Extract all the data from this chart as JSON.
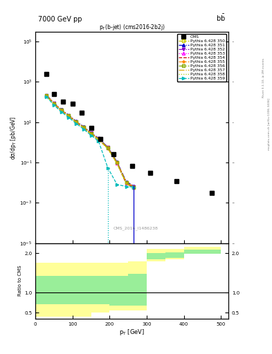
{
  "title_top": "7000 GeV pp",
  "title_right": "b$\\bar{\\mathrm{b}}$",
  "plot_title": "p$_\\mathrm{T}$(b-jet) (cms2016-2b2j)",
  "xlabel": "p$_\\mathrm{T}$ [GeV]",
  "ylabel_main": "dσ/dp$_\\mathrm{T}$ [pb/GeV]",
  "ylabel_ratio": "Ratio to CMS",
  "watermark": "CMS_2016_I1486238",
  "right_label": "Rivet 3.1.10, ≥ 2M events",
  "right_label2": "mcplots.cern.ch [arXiv:1306.3436]",
  "cms_x": [
    30,
    50,
    75,
    100,
    125,
    150,
    175,
    210,
    260,
    310,
    380,
    475
  ],
  "cms_y": [
    2500,
    250,
    100,
    80,
    30,
    5.0,
    1.5,
    0.25,
    0.07,
    0.03,
    0.012,
    0.003
  ],
  "pythia_x": [
    30,
    50,
    70,
    90,
    110,
    130,
    150,
    170,
    195,
    220,
    245,
    265
  ],
  "pythia_350_y": [
    200,
    80,
    38,
    20,
    10,
    5.5,
    2.8,
    1.5,
    0.55,
    0.1,
    0.01,
    0.006
  ],
  "pythia_351_y": [
    220,
    90,
    42,
    22,
    11,
    6.0,
    3.0,
    1.6,
    0.58,
    0.105,
    0.011,
    0.007
  ],
  "pythia_352_y": [
    215,
    88,
    41,
    21.5,
    10.8,
    5.8,
    2.9,
    1.55,
    0.57,
    0.103,
    0.0105,
    0.0065
  ],
  "pythia_353_y": [
    210,
    85,
    39,
    20.5,
    10.3,
    5.5,
    2.75,
    1.45,
    0.53,
    0.095,
    0.009,
    0.006
  ],
  "pythia_354_y": [
    205,
    82,
    38,
    20,
    10,
    5.3,
    2.65,
    1.4,
    0.51,
    0.092,
    0.0088,
    0.0058
  ],
  "pythia_355_y": [
    212,
    87,
    40,
    21,
    10.5,
    5.7,
    2.85,
    1.5,
    0.55,
    0.1,
    0.0102,
    0.0065
  ],
  "pythia_356_y": [
    208,
    85,
    39,
    20.8,
    10.4,
    5.6,
    2.8,
    1.48,
    0.54,
    0.098,
    0.0098,
    0.006
  ],
  "pythia_357_y": [
    200,
    80,
    37,
    19.5,
    9.8,
    5.2,
    2.6,
    1.38,
    0.5,
    0.09,
    0.0088,
    0.0056
  ],
  "pythia_358_y": [
    195,
    78,
    36,
    19,
    9.5,
    5.0,
    2.5,
    1.32,
    0.48,
    0.086,
    0.0085,
    0.0055
  ],
  "pythia_359_y": [
    180,
    70,
    32,
    17,
    8.5,
    4.5,
    2.2,
    1.15,
    0.055,
    0.008,
    0.0065,
    0.006
  ],
  "series": [
    {
      "label": "Pythia 6.428 350",
      "color": "#c8c800",
      "marker": "s",
      "mfc": "none",
      "linestyle": "--"
    },
    {
      "label": "Pythia 6.428 351",
      "color": "#0000cc",
      "marker": "^",
      "mfc": "#0000cc",
      "linestyle": "-."
    },
    {
      "label": "Pythia 6.428 352",
      "color": "#8800cc",
      "marker": "v",
      "mfc": "#8800cc",
      "linestyle": "-."
    },
    {
      "label": "Pythia 6.428 353",
      "color": "#ff00ff",
      "marker": "^",
      "mfc": "none",
      "linestyle": ":"
    },
    {
      "label": "Pythia 6.428 354",
      "color": "#cc0000",
      "marker": "none",
      "mfc": "none",
      "linestyle": "--"
    },
    {
      "label": "Pythia 6.428 355",
      "color": "#ff8800",
      "marker": "*",
      "mfc": "#ff8800",
      "linestyle": "--"
    },
    {
      "label": "Pythia 6.428 356",
      "color": "#88aa00",
      "marker": "s",
      "mfc": "none",
      "linestyle": "-."
    },
    {
      "label": "Pythia 6.428 357",
      "color": "#ddaa00",
      "marker": "none",
      "mfc": "none",
      "linestyle": "-."
    },
    {
      "label": "Pythia 6.428 358",
      "color": "#aacc00",
      "marker": "none",
      "mfc": "none",
      "linestyle": ":"
    },
    {
      "label": "Pythia 6.428 359",
      "color": "#00bbbb",
      "marker": ">",
      "mfc": "#00bbbb",
      "linestyle": "--"
    }
  ],
  "ratio_bins": [
    0,
    50,
    100,
    150,
    200,
    250,
    300,
    350,
    400,
    500
  ],
  "ratio_yellow_low": [
    0.4,
    0.4,
    0.4,
    0.5,
    0.55,
    0.55,
    1.8,
    1.85,
    2.0,
    2.0
  ],
  "ratio_yellow_high": [
    1.75,
    1.75,
    1.75,
    1.75,
    1.75,
    1.8,
    2.1,
    2.1,
    2.15,
    2.15
  ],
  "ratio_green_low": [
    0.72,
    0.72,
    0.72,
    0.72,
    0.68,
    0.68,
    1.85,
    1.88,
    1.98,
    1.98
  ],
  "ratio_green_high": [
    1.42,
    1.42,
    1.42,
    1.42,
    1.42,
    1.48,
    2.0,
    2.02,
    2.08,
    2.08
  ],
  "ylim_main": [
    1e-05,
    300000.0
  ],
  "xlim": [
    0,
    520
  ],
  "ratio_ylim": [
    0.35,
    2.25
  ],
  "ratio_yticks": [
    0.5,
    1.0,
    2.0
  ],
  "background_color": "#ffffff",
  "yellow_color": "#ffff99",
  "green_color": "#99ee99"
}
